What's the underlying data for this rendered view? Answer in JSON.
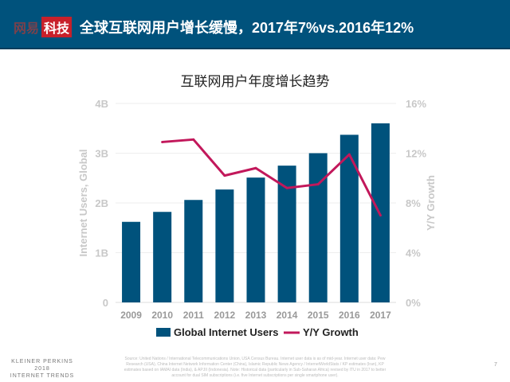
{
  "header": {
    "logo_text_1": "网易",
    "logo_text_2": "科技",
    "title": "全球互联网用户增长缓慢，2017年7%vs.2016年12%"
  },
  "chart_data": {
    "type": "bar+line",
    "title": "互联网用户年度增长趋势",
    "categories": [
      "2009",
      "2010",
      "2011",
      "2012",
      "2013",
      "2014",
      "2015",
      "2016",
      "2017"
    ],
    "series": [
      {
        "name": "Global Internet Users",
        "type": "bar",
        "axis": "left",
        "color": "#00527c",
        "values": [
          1.62,
          1.82,
          2.06,
          2.27,
          2.51,
          2.75,
          3.0,
          3.37,
          3.6
        ]
      },
      {
        "name": "Y/Y Growth",
        "type": "line",
        "axis": "right",
        "color": "#c2185b",
        "values": [
          null,
          12.9,
          13.1,
          10.2,
          10.8,
          9.2,
          9.5,
          11.9,
          7.0
        ]
      }
    ],
    "ylabel": "Internet Users, Global",
    "y2label": "Y/Y Growth",
    "ylim": [
      0,
      4
    ],
    "y2lim": [
      0,
      16
    ],
    "yticks": [
      "0",
      "1B",
      "2B",
      "3B",
      "4B"
    ],
    "y2ticks": [
      "0%",
      "4%",
      "8%",
      "12%",
      "16%"
    ],
    "grid": true,
    "legend": "bottom"
  },
  "footer": {
    "brand": [
      "KLEINER PERKINS",
      "2018",
      "INTERNET TRENDS"
    ],
    "source": "Source: United Nations / International Telecommunications Union, USA Census Bureau. Internet user data is as of mid-year. Internet user data: Pew Research (USA), China Internet Network Information Center (China), Islamic Republic News Agency / InternetWorldStats / KP estimates (Iran), KP estimates based on IAMAI data (India), & APJII (Indonesia). Note: Historical data (particularly in Sub-Saharan Africa) revised by ITU in 2017 to better account for dual SIM subscriptions (i.e. five Internet subscriptions per single smartphone user).",
    "page": "7"
  }
}
